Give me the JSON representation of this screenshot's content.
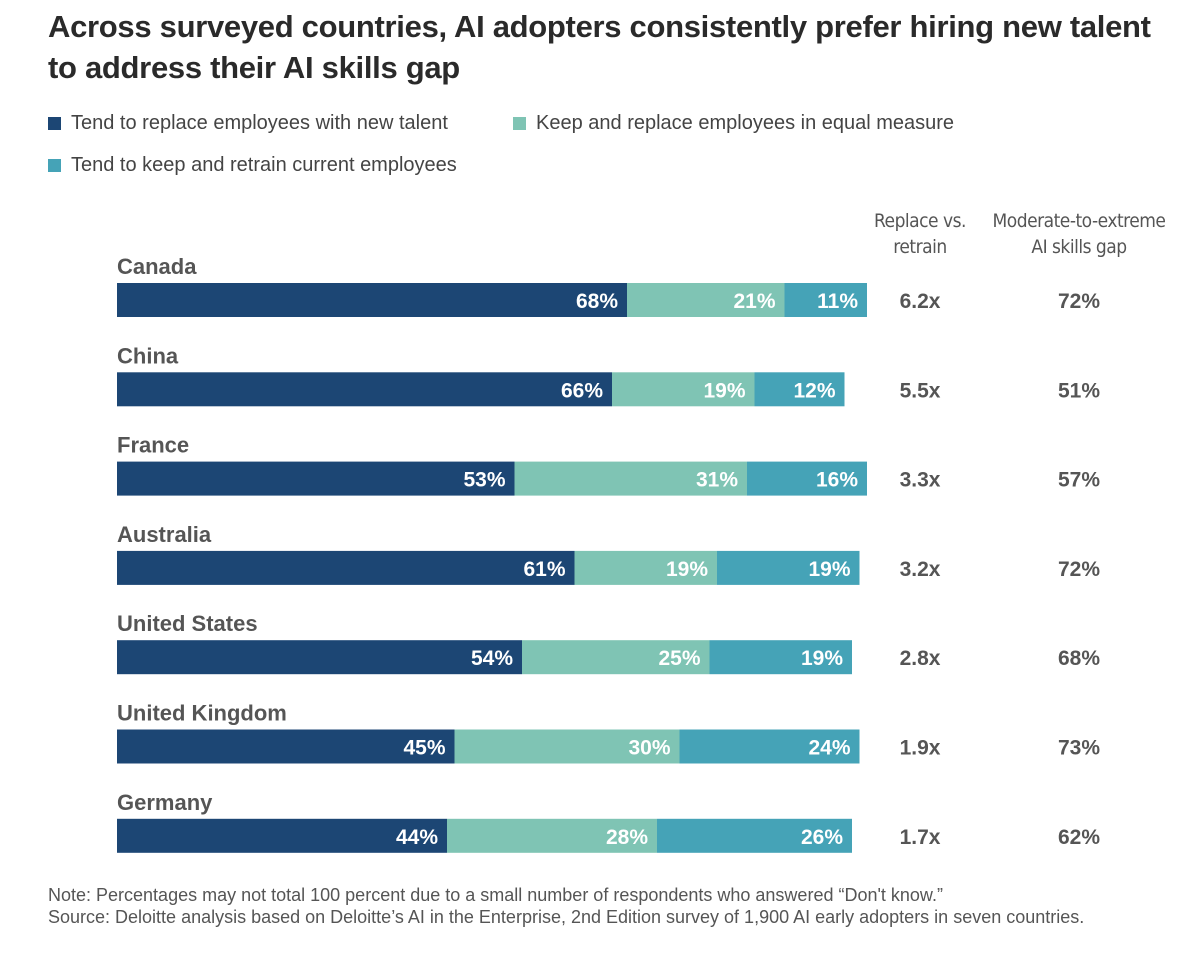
{
  "title": "Across surveyed countries, AI adopters consistently prefer hiring new talent to address their AI skills gap",
  "legend": [
    {
      "label": "Tend to replace employees with new talent",
      "color": "#1c4674"
    },
    {
      "label": "Keep and replace employees in equal measure",
      "color": "#7fc4b4"
    },
    {
      "label": "Tend to keep and retrain current employees",
      "color": "#45a3b7"
    }
  ],
  "columns": {
    "ratio_header": "Replace vs. retrain",
    "gap_header": "Moderate-to-extreme AI skills gap"
  },
  "chart_data": {
    "type": "bar",
    "orientation": "horizontal",
    "stacked": true,
    "categories": [
      "Canada",
      "China",
      "France",
      "Australia",
      "United States",
      "United Kingdom",
      "Germany"
    ],
    "series": [
      {
        "name": "Tend to replace employees with new talent",
        "values": [
          68,
          66,
          53,
          61,
          54,
          45,
          44
        ]
      },
      {
        "name": "Keep and replace employees in equal measure",
        "values": [
          21,
          19,
          31,
          19,
          25,
          30,
          28
        ]
      },
      {
        "name": "Tend to keep and retrain current employees",
        "values": [
          11,
          12,
          16,
          19,
          19,
          24,
          26
        ]
      }
    ],
    "value_suffix": "%",
    "replace_vs_retrain": [
      "6.2x",
      "5.5x",
      "3.3x",
      "3.2x",
      "2.8x",
      "1.9x",
      "1.7x"
    ],
    "skills_gap": [
      "72%",
      "51%",
      "57%",
      "72%",
      "68%",
      "73%",
      "62%"
    ],
    "xlim": [
      0,
      100
    ],
    "grid": false,
    "legend_position": "top-left"
  },
  "note": "Note: Percentages may not total 100 percent due to a small number of respondents who answered “Don't know.”",
  "source": "Source: Deloitte analysis based on Deloitte’s AI in the Enterprise, 2nd Edition survey of 1,900 AI early adopters in seven countries."
}
